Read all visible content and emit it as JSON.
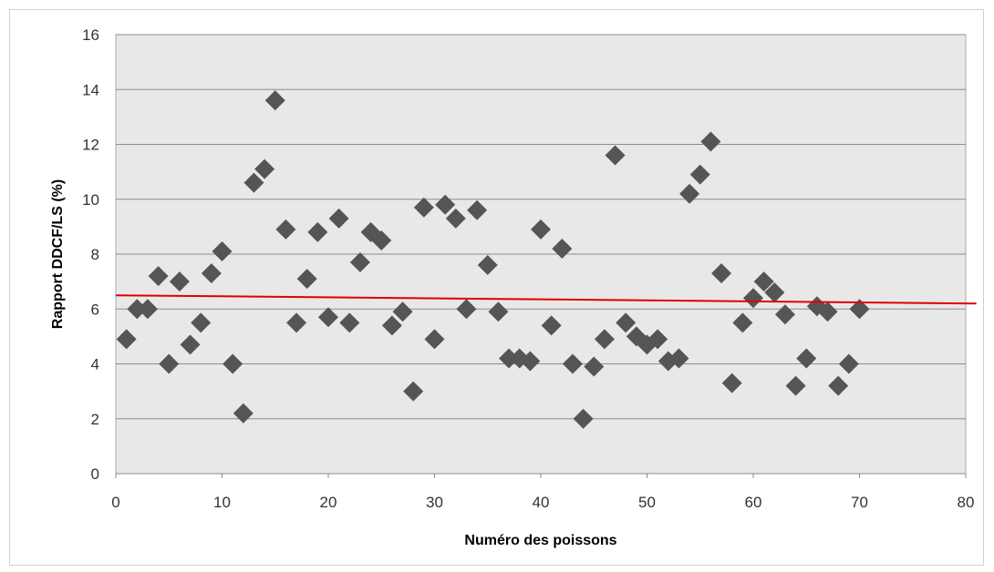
{
  "chart_data": {
    "type": "scatter",
    "title": "",
    "xlabel": "Numéro des poissons",
    "ylabel": "Rapport DDCF/LS (%)",
    "xlim": [
      0,
      80
    ],
    "ylim": [
      0,
      16
    ],
    "xticks": [
      0,
      10,
      20,
      30,
      40,
      50,
      60,
      70,
      80
    ],
    "yticks": [
      0,
      2,
      4,
      6,
      8,
      10,
      12,
      14,
      16
    ],
    "grid": "horizontal",
    "legend": "none",
    "colors": {
      "plot_background": "#e8e8e8",
      "marker": "#555555",
      "trend_line": "#e00000",
      "gridline": "#8c8c8c"
    },
    "series": [
      {
        "marker": "diamond",
        "points": [
          [
            1,
            4.9
          ],
          [
            2,
            6.0
          ],
          [
            3,
            6.0
          ],
          [
            4,
            7.2
          ],
          [
            5,
            4.0
          ],
          [
            6,
            7.0
          ],
          [
            7,
            4.7
          ],
          [
            8,
            5.5
          ],
          [
            9,
            7.3
          ],
          [
            10,
            8.1
          ],
          [
            11,
            4.0
          ],
          [
            12,
            2.2
          ],
          [
            13,
            10.6
          ],
          [
            14,
            11.1
          ],
          [
            15,
            13.6
          ],
          [
            16,
            8.9
          ],
          [
            17,
            5.5
          ],
          [
            18,
            7.1
          ],
          [
            19,
            8.8
          ],
          [
            20,
            5.7
          ],
          [
            21,
            9.3
          ],
          [
            22,
            5.5
          ],
          [
            23,
            7.7
          ],
          [
            24,
            8.8
          ],
          [
            25,
            8.5
          ],
          [
            26,
            5.4
          ],
          [
            27,
            5.9
          ],
          [
            28,
            3.0
          ],
          [
            29,
            9.7
          ],
          [
            30,
            4.9
          ],
          [
            31,
            9.8
          ],
          [
            32,
            9.3
          ],
          [
            33,
            6.0
          ],
          [
            34,
            9.6
          ],
          [
            35,
            7.6
          ],
          [
            36,
            5.9
          ],
          [
            37,
            4.2
          ],
          [
            38,
            4.2
          ],
          [
            39,
            4.1
          ],
          [
            40,
            8.9
          ],
          [
            41,
            5.4
          ],
          [
            42,
            8.2
          ],
          [
            43,
            4.0
          ],
          [
            44,
            2.0
          ],
          [
            45,
            3.9
          ],
          [
            46,
            4.9
          ],
          [
            47,
            11.6
          ],
          [
            48,
            5.5
          ],
          [
            49,
            5.0
          ],
          [
            50,
            4.7
          ],
          [
            51,
            4.9
          ],
          [
            52,
            4.1
          ],
          [
            53,
            4.2
          ],
          [
            54,
            10.2
          ],
          [
            55,
            10.9
          ],
          [
            56,
            12.1
          ],
          [
            57,
            7.3
          ],
          [
            58,
            3.3
          ],
          [
            59,
            5.5
          ],
          [
            60,
            6.4
          ],
          [
            61,
            7.0
          ],
          [
            62,
            6.6
          ],
          [
            63,
            5.8
          ],
          [
            64,
            3.2
          ],
          [
            65,
            4.2
          ],
          [
            66,
            6.1
          ],
          [
            67,
            5.9
          ],
          [
            68,
            3.2
          ],
          [
            69,
            4.0
          ],
          [
            70,
            6.0
          ]
        ]
      }
    ],
    "trend_line": {
      "x": [
        0,
        81
      ],
      "y": [
        6.5,
        6.2
      ]
    }
  }
}
